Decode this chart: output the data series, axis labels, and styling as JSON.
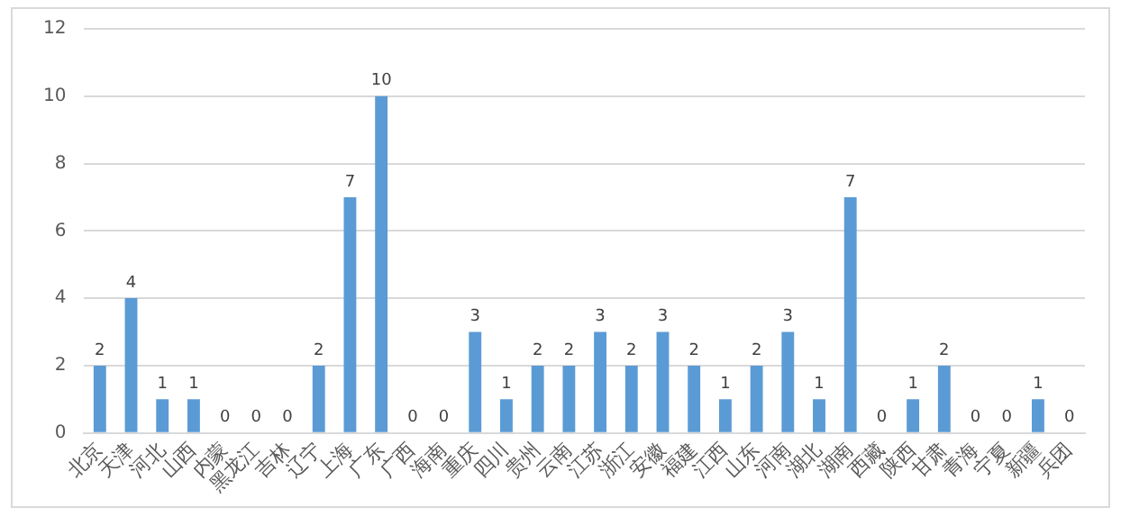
{
  "chart_data": {
    "type": "bar",
    "categories": [
      "北京",
      "天津",
      "河北",
      "山西",
      "内蒙",
      "黑龙江",
      "吉林",
      "辽宁",
      "上海",
      "广东",
      "广西",
      "海南",
      "重庆",
      "四川",
      "贵州",
      "云南",
      "江苏",
      "浙江",
      "安徽",
      "福建",
      "江西",
      "山东",
      "河南",
      "湖北",
      "湖南",
      "西藏",
      "陕西",
      "甘肃",
      "青海",
      "宁夏",
      "新疆",
      "兵团"
    ],
    "values": [
      2,
      4,
      1,
      1,
      0,
      0,
      0,
      2,
      7,
      10,
      0,
      0,
      3,
      1,
      2,
      2,
      3,
      2,
      3,
      2,
      1,
      2,
      3,
      1,
      7,
      0,
      1,
      2,
      0,
      0,
      1,
      0
    ],
    "data_labels": true,
    "color": "#5b9bd5",
    "ylim": [
      0,
      12
    ],
    "yticks": [
      0,
      2,
      4,
      6,
      8,
      10,
      12
    ],
    "grid": "y",
    "legend": false
  }
}
